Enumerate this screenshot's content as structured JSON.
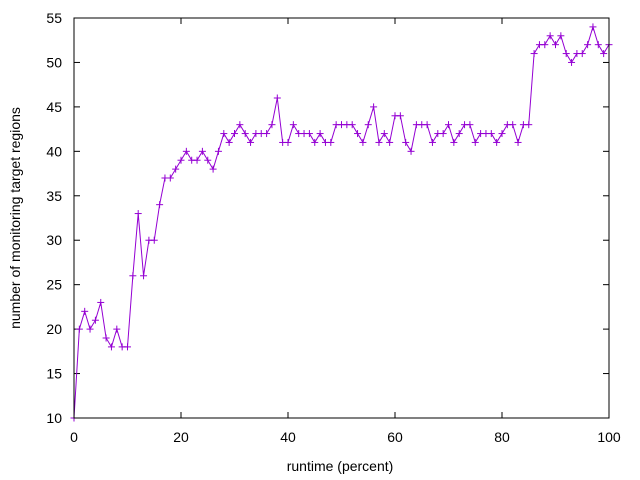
{
  "chart_data": {
    "type": "line",
    "title": "",
    "xlabel": "runtime (percent)",
    "ylabel": "number of monitoring target regions",
    "xlim": [
      0,
      100
    ],
    "ylim": [
      10,
      55
    ],
    "xticks": [
      0,
      20,
      40,
      60,
      80,
      100
    ],
    "yticks": [
      10,
      15,
      20,
      25,
      30,
      35,
      40,
      45,
      50,
      55
    ],
    "grid": false,
    "legend": "none",
    "marker": "plus",
    "series": [
      {
        "color": "#9400d3",
        "x": [
          0,
          1,
          2,
          3,
          4,
          5,
          6,
          7,
          8,
          9,
          10,
          11,
          12,
          13,
          14,
          15,
          16,
          17,
          18,
          19,
          20,
          21,
          22,
          23,
          24,
          25,
          26,
          27,
          28,
          29,
          30,
          31,
          32,
          33,
          34,
          35,
          36,
          37,
          38,
          39,
          40,
          41,
          42,
          43,
          44,
          45,
          46,
          47,
          48,
          49,
          50,
          51,
          52,
          53,
          54,
          55,
          56,
          57,
          58,
          59,
          60,
          61,
          62,
          63,
          64,
          65,
          66,
          67,
          68,
          69,
          70,
          71,
          72,
          73,
          74,
          75,
          76,
          77,
          78,
          79,
          80,
          81,
          82,
          83,
          84,
          85,
          86,
          87,
          88,
          89,
          90,
          91,
          92,
          93,
          94,
          95,
          96,
          97,
          98,
          99,
          100
        ],
        "y": [
          10,
          20,
          22,
          20,
          21,
          23,
          19,
          18,
          20,
          18,
          18,
          26,
          33,
          26,
          30,
          30,
          34,
          37,
          37,
          38,
          39,
          40,
          39,
          39,
          40,
          39,
          38,
          40,
          42,
          41,
          42,
          43,
          42,
          41,
          42,
          42,
          42,
          43,
          46,
          41,
          41,
          43,
          42,
          42,
          42,
          41,
          42,
          41,
          41,
          43,
          43,
          43,
          43,
          42,
          41,
          43,
          45,
          41,
          42,
          41,
          44,
          44,
          41,
          40,
          43,
          43,
          43,
          41,
          42,
          42,
          43,
          41,
          42,
          43,
          43,
          41,
          42,
          42,
          42,
          41,
          42,
          43,
          43,
          41,
          43,
          43,
          51,
          52,
          52,
          53,
          52,
          53,
          51,
          50,
          51,
          51,
          52,
          54,
          52,
          51,
          52
        ]
      }
    ]
  }
}
